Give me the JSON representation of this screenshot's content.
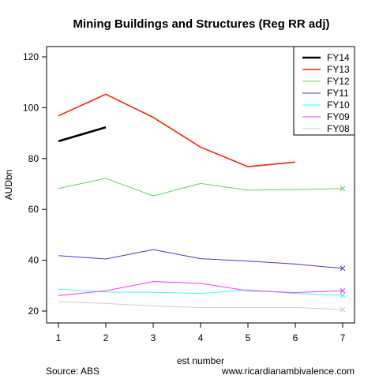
{
  "chart_data": {
    "type": "line",
    "title": "Mining Buildings and Structures (Reg RR adj)",
    "xlabel": "est number",
    "ylabel": "AUDbn",
    "x": [
      1,
      2,
      3,
      4,
      5,
      6,
      7
    ],
    "xlim": [
      1,
      7
    ],
    "ylim": [
      20,
      120
    ],
    "y_ticks": [
      20,
      40,
      60,
      80,
      100,
      120
    ],
    "x_ticks": [
      1,
      2,
      3,
      4,
      5,
      6,
      7
    ],
    "legend_position": "top-right",
    "grid": false,
    "series": [
      {
        "name": "FY14",
        "color": "#000000",
        "values": [
          86.8,
          92.3,
          null,
          null,
          null,
          null,
          null
        ],
        "bold": true,
        "end_marker": false
      },
      {
        "name": "FY13",
        "color": "#ff2200",
        "values": [
          96.8,
          105.3,
          96.2,
          84.5,
          76.8,
          78.6,
          null
        ],
        "bold": false,
        "end_marker": false
      },
      {
        "name": "FY12",
        "color": "#5fd35f",
        "values": [
          68.2,
          72.2,
          65.3,
          70.2,
          67.6,
          67.8,
          68.2
        ],
        "bold": false,
        "end_marker": true
      },
      {
        "name": "FY11",
        "color": "#3b3bdd",
        "values": [
          41.8,
          40.5,
          44.2,
          40.6,
          39.7,
          38.5,
          36.8
        ],
        "bold": false,
        "end_marker": true
      },
      {
        "name": "FY10",
        "color": "#33ffff",
        "values": [
          28.6,
          27.5,
          27.4,
          26.9,
          28.4,
          26.9,
          26.2
        ],
        "bold": false,
        "end_marker": true
      },
      {
        "name": "FY09",
        "color": "#ff33ff",
        "values": [
          26.1,
          28.0,
          31.6,
          30.9,
          28.0,
          27.3,
          28.0
        ],
        "bold": false,
        "end_marker": true
      },
      {
        "name": "FY08",
        "color": "#cccccc",
        "values": [
          23.7,
          23.0,
          22.0,
          21.4,
          21.4,
          21.4,
          20.6
        ],
        "bold": false,
        "end_marker": true
      }
    ]
  },
  "footer": {
    "source": "Source: ABS",
    "website": "www.ricardianambivalence.com"
  }
}
